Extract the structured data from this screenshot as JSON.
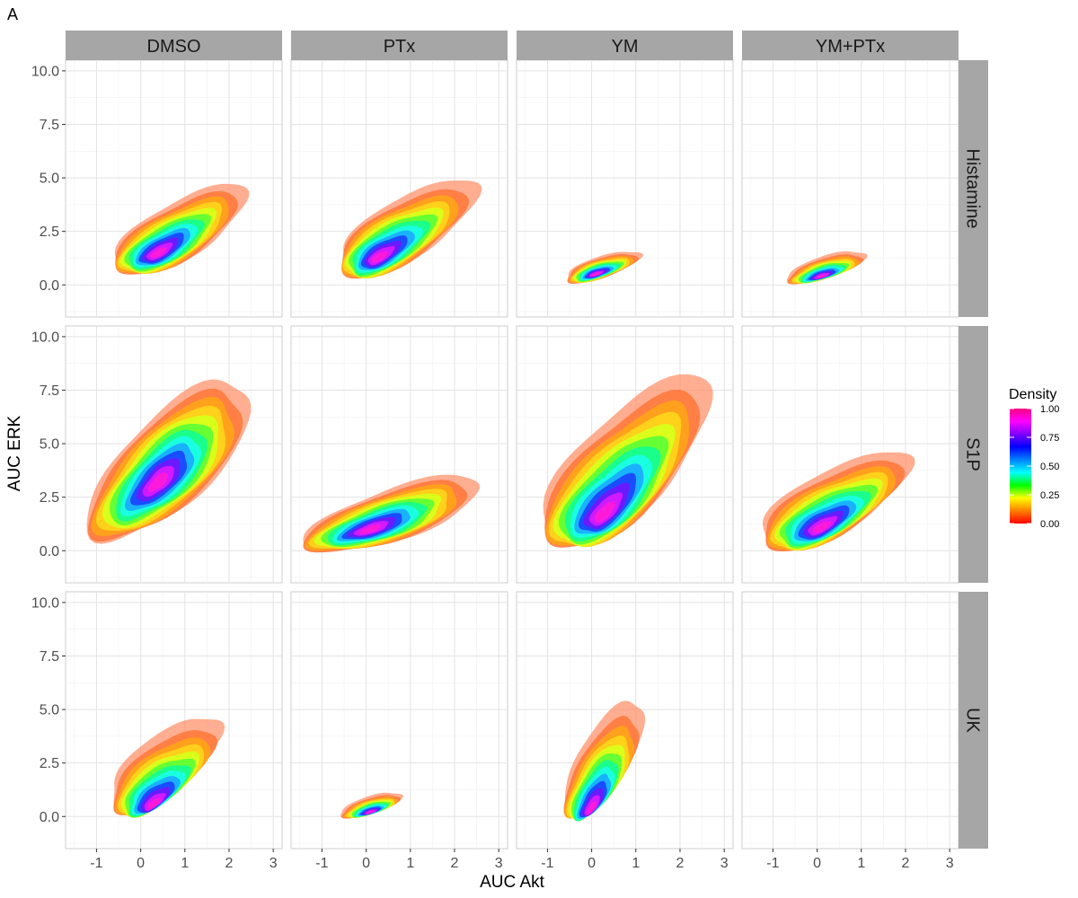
{
  "chart_data": {
    "type": "density-contour-facet",
    "tag": "A",
    "xlabel": "AUC Akt",
    "ylabel": "AUC ERK",
    "xlim": [
      -1.7,
      3.2
    ],
    "ylim": [
      -1.5,
      10.5
    ],
    "x_ticks": [
      "-1",
      "0",
      "1",
      "2",
      "3"
    ],
    "y_ticks": [
      "0.0",
      "2.5",
      "5.0",
      "7.5",
      "10.0"
    ],
    "x_tick_values": [
      -1,
      0,
      1,
      2,
      3
    ],
    "y_tick_values": [
      0,
      2.5,
      5,
      7.5,
      10
    ],
    "columns": [
      "DMSO",
      "PTx",
      "YM",
      "YM+PTx"
    ],
    "rows": [
      "Histamine",
      "S1P",
      "UK"
    ],
    "grid": true,
    "legend": {
      "title": "Density",
      "ticks": [
        "1.00",
        "0.75",
        "0.50",
        "0.25",
        "0.00"
      ],
      "tick_values": [
        1.0,
        0.75,
        0.5,
        0.25,
        0.0
      ],
      "colors": [
        "#ff0000",
        "#ff8000",
        "#ffff00",
        "#00ff00",
        "#00ffff",
        "#0080ff",
        "#0000ff",
        "#8000ff",
        "#ff00ff",
        "#ff0080"
      ],
      "placement": "right"
    },
    "panels": [
      {
        "row": "Histamine",
        "col": "DMSO",
        "empty": false,
        "ext": [
          -0.6,
          2.4,
          -0.1,
          5.3
        ],
        "peak": [
          0.4,
          1.5
        ],
        "rot": 63,
        "sx": 0.45,
        "sy": 1.05
      },
      {
        "row": "Histamine",
        "col": "PTx",
        "empty": false,
        "ext": [
          -0.6,
          2.5,
          -0.2,
          5.6
        ],
        "peak": [
          0.3,
          1.3
        ],
        "rot": 58,
        "sx": 0.5,
        "sy": 1.1
      },
      {
        "row": "Histamine",
        "col": "YM",
        "empty": false,
        "ext": [
          -0.6,
          1.1,
          -0.1,
          1.8
        ],
        "peak": [
          0.1,
          0.5
        ],
        "rot": 35,
        "sx": 0.3,
        "sy": 0.32
      },
      {
        "row": "Histamine",
        "col": "YM+PTx",
        "empty": false,
        "ext": [
          -0.7,
          1.1,
          -0.1,
          1.8
        ],
        "peak": [
          0.1,
          0.4
        ],
        "rot": 25,
        "sx": 0.32,
        "sy": 0.3
      },
      {
        "row": "S1P",
        "col": "DMSO",
        "empty": false,
        "ext": [
          -1.2,
          2.5,
          -0.6,
          9.0
        ],
        "peak": [
          0.4,
          3.2
        ],
        "rot": 70,
        "sx": 0.55,
        "sy": 1.95
      },
      {
        "row": "S1P",
        "col": "PTx",
        "empty": false,
        "ext": [
          -1.4,
          2.6,
          -0.6,
          4.0
        ],
        "peak": [
          0.1,
          1.0
        ],
        "rot": 32,
        "sx": 0.62,
        "sy": 0.55
      },
      {
        "row": "S1P",
        "col": "YM",
        "empty": false,
        "ext": [
          -1.1,
          2.7,
          -0.9,
          9.3
        ],
        "peak": [
          0.3,
          1.8
        ],
        "rot": 68,
        "sx": 0.6,
        "sy": 1.95
      },
      {
        "row": "S1P",
        "col": "YM+PTx",
        "empty": false,
        "ext": [
          -1.3,
          2.1,
          -0.6,
          5.3
        ],
        "peak": [
          0.1,
          1.1
        ],
        "rot": 40,
        "sx": 0.58,
        "sy": 0.72
      },
      {
        "row": "UK",
        "col": "DMSO",
        "empty": false,
        "ext": [
          -0.7,
          1.8,
          -0.2,
          5.3
        ],
        "peak": [
          0.3,
          0.6
        ],
        "rot": 62,
        "sx": 0.38,
        "sy": 1.05
      },
      {
        "row": "UK",
        "col": "PTx",
        "empty": false,
        "ext": [
          -0.6,
          0.8,
          -0.2,
          1.3
        ],
        "peak": [
          0.1,
          0.2
        ],
        "rot": 25,
        "sx": 0.25,
        "sy": 0.22
      },
      {
        "row": "UK",
        "col": "YM",
        "empty": false,
        "ext": [
          -0.6,
          1.2,
          -0.3,
          6.1
        ],
        "peak": [
          0.0,
          0.4
        ],
        "rot": 72,
        "sx": 0.3,
        "sy": 1.35
      },
      {
        "row": "UK",
        "col": "YM+PTx",
        "empty": true
      }
    ]
  }
}
